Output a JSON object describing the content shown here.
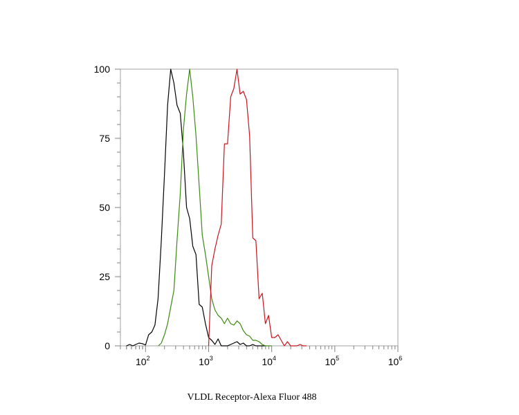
{
  "chart_data": {
    "type": "line",
    "title": "",
    "xlabel": "VLDL Receptor-Alexa Fluor 488",
    "ylabel": "",
    "xscale": "log",
    "xlim": [
      40,
      1000000
    ],
    "ylim": [
      0,
      100
    ],
    "grid": false,
    "legend": "none",
    "y_ticks": [
      0,
      25,
      50,
      75,
      100
    ],
    "y_tick_labels": [
      "0",
      "25",
      "50",
      "75",
      "100"
    ],
    "x_ticks": [
      100,
      1000,
      10000,
      100000,
      1000000
    ],
    "x_tick_labels": [
      {
        "base": "10",
        "exp": "2"
      },
      {
        "base": "10",
        "exp": "3"
      },
      {
        "base": "10",
        "exp": "4"
      },
      {
        "base": "10",
        "exp": "5"
      },
      {
        "base": "10",
        "exp": "6"
      }
    ],
    "series": [
      {
        "color": "#000000",
        "points": [
          [
            50,
            0
          ],
          [
            56,
            0.5
          ],
          [
            63,
            0
          ],
          [
            70,
            0.5
          ],
          [
            79,
            1
          ],
          [
            89,
            0.8
          ],
          [
            100,
            0.3
          ],
          [
            112,
            4
          ],
          [
            126,
            5
          ],
          [
            141,
            7.5
          ],
          [
            158,
            17
          ],
          [
            178,
            38
          ],
          [
            200,
            62
          ],
          [
            224,
            87
          ],
          [
            251,
            100
          ],
          [
            282,
            95
          ],
          [
            316,
            87
          ],
          [
            355,
            84
          ],
          [
            398,
            70
          ],
          [
            447,
            50
          ],
          [
            501,
            46
          ],
          [
            562,
            36
          ],
          [
            631,
            33
          ],
          [
            708,
            15
          ],
          [
            794,
            14
          ],
          [
            891,
            8
          ],
          [
            1000,
            3
          ],
          [
            1122,
            2
          ],
          [
            1259,
            0.5
          ],
          [
            1413,
            2.5
          ],
          [
            1585,
            0
          ],
          [
            1778,
            0
          ],
          [
            1995,
            0
          ],
          [
            2239,
            0.5
          ],
          [
            2512,
            1
          ],
          [
            2818,
            1.5
          ],
          [
            3162,
            0.5
          ],
          [
            3548,
            1
          ],
          [
            3981,
            0
          ],
          [
            4467,
            0
          ],
          [
            5012,
            0.5
          ],
          [
            5623,
            0
          ],
          [
            6310,
            0
          ],
          [
            7079,
            0
          ],
          [
            7943,
            0
          ]
        ]
      },
      {
        "color": "#3a8a10",
        "points": [
          [
            160,
            0
          ],
          [
            178,
            1
          ],
          [
            200,
            4
          ],
          [
            224,
            8
          ],
          [
            251,
            14
          ],
          [
            282,
            20
          ],
          [
            316,
            38
          ],
          [
            355,
            55
          ],
          [
            398,
            78
          ],
          [
            447,
            91
          ],
          [
            501,
            100
          ],
          [
            562,
            90
          ],
          [
            631,
            76
          ],
          [
            708,
            58
          ],
          [
            794,
            40
          ],
          [
            891,
            33
          ],
          [
            1000,
            25
          ],
          [
            1122,
            17
          ],
          [
            1259,
            13
          ],
          [
            1413,
            11
          ],
          [
            1585,
            10
          ],
          [
            1778,
            8
          ],
          [
            1995,
            10
          ],
          [
            2239,
            8
          ],
          [
            2512,
            7.5
          ],
          [
            2818,
            9
          ],
          [
            3162,
            8
          ],
          [
            3548,
            5.5
          ],
          [
            3981,
            4
          ],
          [
            4467,
            3.5
          ],
          [
            5012,
            2
          ],
          [
            5623,
            2
          ],
          [
            6310,
            1.5
          ],
          [
            7079,
            0.5
          ],
          [
            7943,
            0
          ],
          [
            8913,
            0
          ],
          [
            10000,
            0
          ]
        ]
      },
      {
        "color": "#c8141e",
        "points": [
          [
            1000,
            0
          ],
          [
            1122,
            29
          ],
          [
            1259,
            35
          ],
          [
            1413,
            40
          ],
          [
            1585,
            44
          ],
          [
            1778,
            73
          ],
          [
            1995,
            73
          ],
          [
            2239,
            90
          ],
          [
            2512,
            93
          ],
          [
            2818,
            100
          ],
          [
            3162,
            91
          ],
          [
            3548,
            92
          ],
          [
            3981,
            89
          ],
          [
            4467,
            76
          ],
          [
            5012,
            39
          ],
          [
            5623,
            38
          ],
          [
            6310,
            17
          ],
          [
            7079,
            19
          ],
          [
            7943,
            8
          ],
          [
            8913,
            11
          ],
          [
            10000,
            3
          ],
          [
            11220,
            3
          ],
          [
            12589,
            4
          ],
          [
            14125,
            2
          ],
          [
            15849,
            0
          ],
          [
            17783,
            1.5
          ],
          [
            19953,
            0
          ],
          [
            22387,
            0
          ],
          [
            25119,
            0
          ],
          [
            28184,
            0.5
          ],
          [
            31623,
            0
          ],
          [
            35481,
            0
          ]
        ]
      }
    ]
  }
}
